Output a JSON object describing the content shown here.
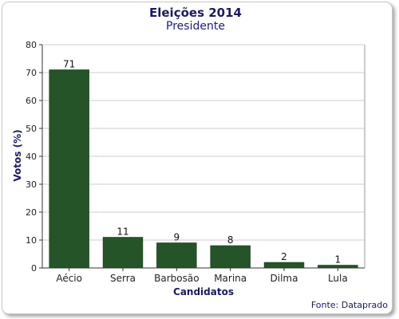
{
  "source": "Fonte: Dataprado",
  "chart_data": {
    "type": "bar",
    "title": "Eleições 2014",
    "subtitle": "Presidente",
    "xlabel": "Candidatos",
    "ylabel": "Votos (%)",
    "categories": [
      "Aécio",
      "Serra",
      "Barbosão",
      "Marina",
      "Dilma",
      "Lula"
    ],
    "values": [
      71,
      11,
      9,
      8,
      2,
      1
    ],
    "ylim": [
      0,
      80
    ],
    "yticks": [
      0,
      10,
      20,
      30,
      40,
      50,
      60,
      70,
      80
    ],
    "grid": true,
    "bar_color": "#245427"
  }
}
